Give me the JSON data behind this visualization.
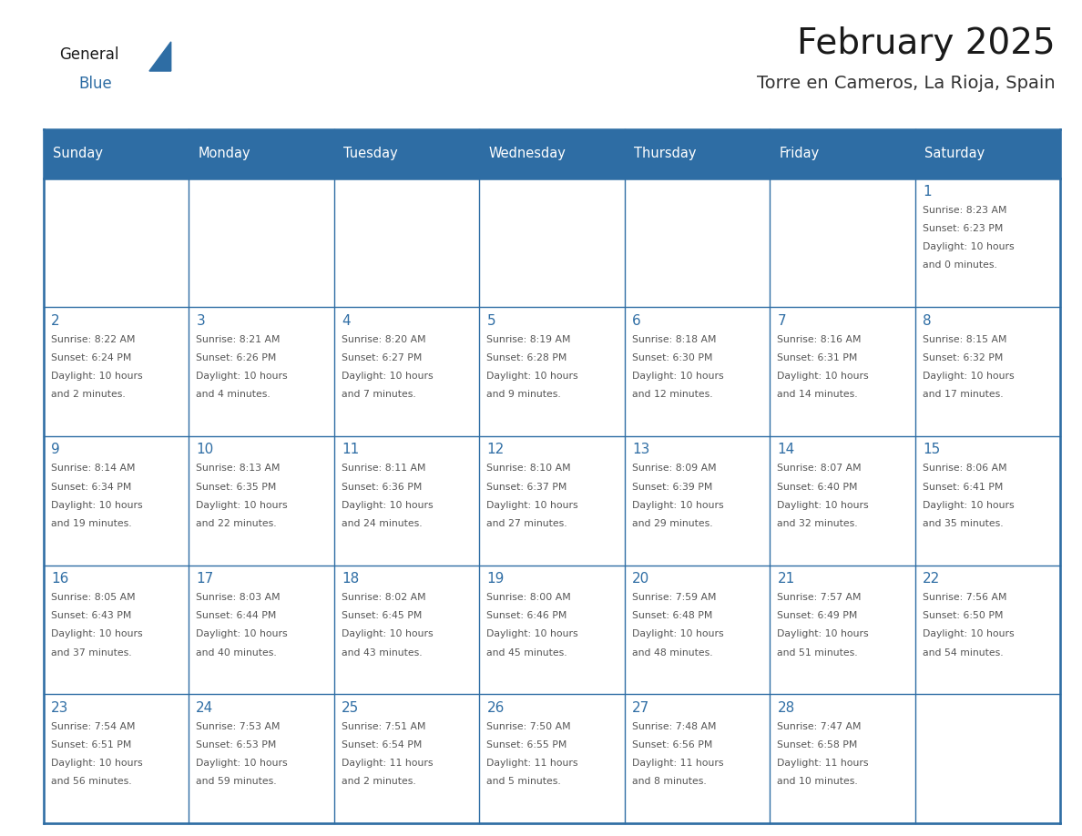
{
  "title": "February 2025",
  "subtitle": "Torre en Cameros, La Rioja, Spain",
  "days_of_week": [
    "Sunday",
    "Monday",
    "Tuesday",
    "Wednesday",
    "Thursday",
    "Friday",
    "Saturday"
  ],
  "header_bg": "#2E6DA4",
  "header_text": "#FFFFFF",
  "cell_bg": "#FFFFFF",
  "day_num_color": "#2E6DA4",
  "info_text_color": "#555555",
  "border_color": "#2E6DA4",
  "title_color": "#1a1a1a",
  "subtitle_color": "#333333",
  "logo_general_color": "#1a1a1a",
  "logo_blue_color": "#2E6DA4",
  "calendar_data": [
    [
      {
        "day": null,
        "info": ""
      },
      {
        "day": null,
        "info": ""
      },
      {
        "day": null,
        "info": ""
      },
      {
        "day": null,
        "info": ""
      },
      {
        "day": null,
        "info": ""
      },
      {
        "day": null,
        "info": ""
      },
      {
        "day": 1,
        "info": "Sunrise: 8:23 AM\nSunset: 6:23 PM\nDaylight: 10 hours\nand 0 minutes."
      }
    ],
    [
      {
        "day": 2,
        "info": "Sunrise: 8:22 AM\nSunset: 6:24 PM\nDaylight: 10 hours\nand 2 minutes."
      },
      {
        "day": 3,
        "info": "Sunrise: 8:21 AM\nSunset: 6:26 PM\nDaylight: 10 hours\nand 4 minutes."
      },
      {
        "day": 4,
        "info": "Sunrise: 8:20 AM\nSunset: 6:27 PM\nDaylight: 10 hours\nand 7 minutes."
      },
      {
        "day": 5,
        "info": "Sunrise: 8:19 AM\nSunset: 6:28 PM\nDaylight: 10 hours\nand 9 minutes."
      },
      {
        "day": 6,
        "info": "Sunrise: 8:18 AM\nSunset: 6:30 PM\nDaylight: 10 hours\nand 12 minutes."
      },
      {
        "day": 7,
        "info": "Sunrise: 8:16 AM\nSunset: 6:31 PM\nDaylight: 10 hours\nand 14 minutes."
      },
      {
        "day": 8,
        "info": "Sunrise: 8:15 AM\nSunset: 6:32 PM\nDaylight: 10 hours\nand 17 minutes."
      }
    ],
    [
      {
        "day": 9,
        "info": "Sunrise: 8:14 AM\nSunset: 6:34 PM\nDaylight: 10 hours\nand 19 minutes."
      },
      {
        "day": 10,
        "info": "Sunrise: 8:13 AM\nSunset: 6:35 PM\nDaylight: 10 hours\nand 22 minutes."
      },
      {
        "day": 11,
        "info": "Sunrise: 8:11 AM\nSunset: 6:36 PM\nDaylight: 10 hours\nand 24 minutes."
      },
      {
        "day": 12,
        "info": "Sunrise: 8:10 AM\nSunset: 6:37 PM\nDaylight: 10 hours\nand 27 minutes."
      },
      {
        "day": 13,
        "info": "Sunrise: 8:09 AM\nSunset: 6:39 PM\nDaylight: 10 hours\nand 29 minutes."
      },
      {
        "day": 14,
        "info": "Sunrise: 8:07 AM\nSunset: 6:40 PM\nDaylight: 10 hours\nand 32 minutes."
      },
      {
        "day": 15,
        "info": "Sunrise: 8:06 AM\nSunset: 6:41 PM\nDaylight: 10 hours\nand 35 minutes."
      }
    ],
    [
      {
        "day": 16,
        "info": "Sunrise: 8:05 AM\nSunset: 6:43 PM\nDaylight: 10 hours\nand 37 minutes."
      },
      {
        "day": 17,
        "info": "Sunrise: 8:03 AM\nSunset: 6:44 PM\nDaylight: 10 hours\nand 40 minutes."
      },
      {
        "day": 18,
        "info": "Sunrise: 8:02 AM\nSunset: 6:45 PM\nDaylight: 10 hours\nand 43 minutes."
      },
      {
        "day": 19,
        "info": "Sunrise: 8:00 AM\nSunset: 6:46 PM\nDaylight: 10 hours\nand 45 minutes."
      },
      {
        "day": 20,
        "info": "Sunrise: 7:59 AM\nSunset: 6:48 PM\nDaylight: 10 hours\nand 48 minutes."
      },
      {
        "day": 21,
        "info": "Sunrise: 7:57 AM\nSunset: 6:49 PM\nDaylight: 10 hours\nand 51 minutes."
      },
      {
        "day": 22,
        "info": "Sunrise: 7:56 AM\nSunset: 6:50 PM\nDaylight: 10 hours\nand 54 minutes."
      }
    ],
    [
      {
        "day": 23,
        "info": "Sunrise: 7:54 AM\nSunset: 6:51 PM\nDaylight: 10 hours\nand 56 minutes."
      },
      {
        "day": 24,
        "info": "Sunrise: 7:53 AM\nSunset: 6:53 PM\nDaylight: 10 hours\nand 59 minutes."
      },
      {
        "day": 25,
        "info": "Sunrise: 7:51 AM\nSunset: 6:54 PM\nDaylight: 11 hours\nand 2 minutes."
      },
      {
        "day": 26,
        "info": "Sunrise: 7:50 AM\nSunset: 6:55 PM\nDaylight: 11 hours\nand 5 minutes."
      },
      {
        "day": 27,
        "info": "Sunrise: 7:48 AM\nSunset: 6:56 PM\nDaylight: 11 hours\nand 8 minutes."
      },
      {
        "day": 28,
        "info": "Sunrise: 7:47 AM\nSunset: 6:58 PM\nDaylight: 11 hours\nand 10 minutes."
      },
      {
        "day": null,
        "info": ""
      }
    ]
  ]
}
